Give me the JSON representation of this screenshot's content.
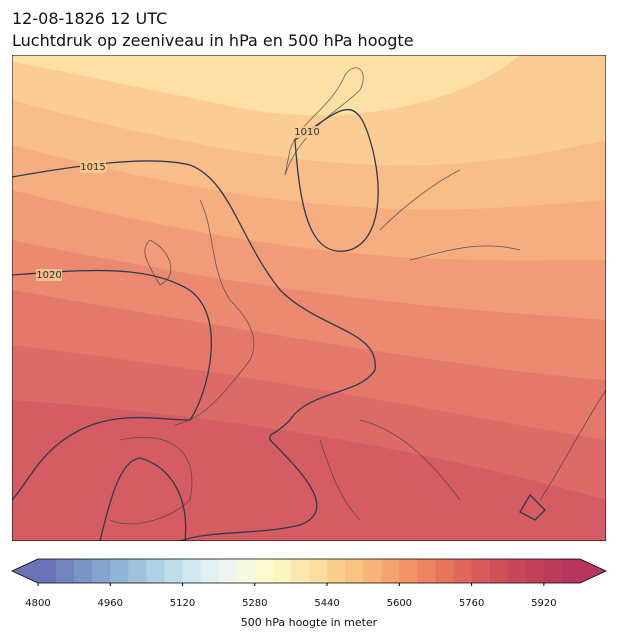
{
  "header": {
    "date": "12-08-1826 12 UTC",
    "title": "Luchtdruk op zeeniveau in hPa en 500 hPa hoogte"
  },
  "map": {
    "contour_labels": [
      1015,
      1020,
      1010
    ]
  },
  "colorbar": {
    "lim": [
      4800,
      6000
    ],
    "ticks": [
      4800,
      4960,
      5120,
      5280,
      5440,
      5600,
      5760,
      5920
    ],
    "label": "500 hPa hoogte in meter",
    "colors": [
      "#6a73b5",
      "#7283bd",
      "#7b94c5",
      "#84a4cd",
      "#90b4d5",
      "#9ec2dc",
      "#afd1e4",
      "#c0dde9",
      "#d1e8f0",
      "#e0f1f2",
      "#ecf6ec",
      "#f5f9df",
      "#fbfad0",
      "#fdf4bf",
      "#fde9ae",
      "#fcdd9e",
      "#fbd08f",
      "#fac283",
      "#f8b378",
      "#f6a46f",
      "#f29467",
      "#ed8461",
      "#e7755c",
      "#e06759",
      "#d95a58",
      "#d14f58",
      "#ca4659",
      "#c3405b",
      "#bc3a5c",
      "#b5355d"
    ]
  }
}
